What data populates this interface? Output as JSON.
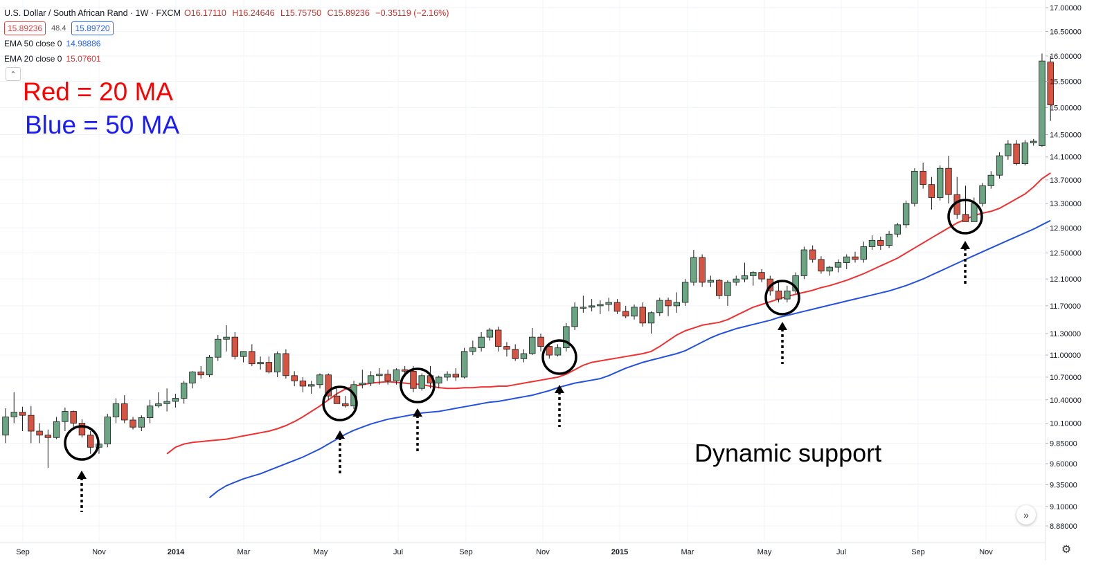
{
  "header": {
    "symbol_line": "U.S. Dollar / South African Rand · 1W · FXCM",
    "open": "O16.17110",
    "high": "H16.24646",
    "low": "L15.75750",
    "close": "C15.89236",
    "change": "−0.35119 (−2.16%)",
    "sell_price": "15.89236",
    "spread": "48.4",
    "buy_price": "15.89720",
    "collapse_icon": "chevron-up-icon"
  },
  "indicators": [
    {
      "label": "EMA 50 close 0",
      "value": "14.98886",
      "color": "#2962ff"
    },
    {
      "label": "EMA 20 close 0",
      "value": "15.07601",
      "color": "#e53935"
    }
  ],
  "annotations": {
    "red_note": "Red = 20 MA",
    "blue_note": "Blue = 50 MA",
    "support_note": "Dynamic support"
  },
  "controls": {
    "scroll_icon": "double-chevron-right-icon",
    "scroll_glyph": "»",
    "settings_icon": "gear-icon",
    "settings_glyph": "⚙"
  },
  "colors": {
    "up": "#6ba583",
    "down": "#d75442",
    "ema20": "#f23030",
    "ema50": "#2450e0",
    "grid": "#f0f3fa",
    "axis_text": "#131722"
  },
  "chart_data": {
    "type": "candlestick",
    "y_axis_ticks": [
      "17.00000",
      "16.50000",
      "16.00000",
      "15.50000",
      "15.00000",
      "14.50000",
      "14.10000",
      "13.70000",
      "13.30000",
      "12.90000",
      "12.50000",
      "12.10000",
      "11.70000",
      "11.30000",
      "11.00000",
      "10.70000",
      "10.40000",
      "10.10000",
      "9.85000",
      "9.60000",
      "9.35000",
      "9.10000",
      "8.88000"
    ],
    "x_axis_labels": [
      "Sep",
      "Nov",
      "2014",
      "Mar",
      "May",
      "Jul",
      "Sep",
      "Nov",
      "2015",
      "Mar",
      "May",
      "Jul",
      "Sep",
      "Nov"
    ],
    "candles": [
      [
        9.95,
        10.29,
        9.85,
        10.18
      ],
      [
        10.18,
        10.5,
        10.1,
        10.24
      ],
      [
        10.24,
        10.31,
        10.0,
        10.2
      ],
      [
        10.2,
        10.32,
        9.85,
        10.0
      ],
      [
        10.0,
        10.1,
        9.85,
        9.95
      ],
      [
        9.95,
        10.02,
        9.55,
        9.92
      ],
      [
        9.92,
        10.18,
        9.9,
        10.12
      ],
      [
        10.12,
        10.3,
        10.0,
        10.25
      ],
      [
        10.25,
        10.26,
        10.05,
        10.1
      ],
      [
        10.1,
        10.15,
        9.92,
        9.95
      ],
      [
        9.95,
        10.0,
        9.72,
        9.8
      ],
      [
        9.8,
        9.88,
        9.72,
        9.84
      ],
      [
        9.84,
        10.22,
        9.8,
        10.18
      ],
      [
        10.18,
        10.42,
        10.1,
        10.35
      ],
      [
        10.35,
        10.46,
        10.1,
        10.14
      ],
      [
        10.14,
        10.18,
        10.02,
        10.05
      ],
      [
        10.05,
        10.2,
        10.0,
        10.17
      ],
      [
        10.17,
        10.4,
        10.1,
        10.32
      ],
      [
        10.32,
        10.5,
        10.3,
        10.35
      ],
      [
        10.35,
        10.55,
        10.25,
        10.38
      ],
      [
        10.38,
        10.48,
        10.3,
        10.42
      ],
      [
        10.42,
        10.65,
        10.35,
        10.62
      ],
      [
        10.62,
        10.78,
        10.55,
        10.77
      ],
      [
        10.77,
        10.85,
        10.68,
        10.73
      ],
      [
        10.73,
        11.0,
        10.7,
        10.97
      ],
      [
        10.97,
        11.28,
        10.92,
        11.22
      ],
      [
        11.22,
        11.42,
        11.05,
        11.25
      ],
      [
        11.25,
        11.32,
        10.94,
        10.98
      ],
      [
        10.98,
        11.05,
        10.9,
        11.05
      ],
      [
        11.05,
        11.15,
        10.85,
        10.88
      ],
      [
        10.88,
        10.98,
        10.8,
        10.9
      ],
      [
        10.9,
        10.98,
        10.75,
        10.77
      ],
      [
        10.77,
        11.05,
        10.7,
        11.02
      ],
      [
        11.02,
        11.08,
        10.68,
        10.72
      ],
      [
        10.72,
        10.78,
        10.58,
        10.65
      ],
      [
        10.65,
        10.7,
        10.5,
        10.58
      ],
      [
        10.58,
        10.65,
        10.48,
        10.6
      ],
      [
        10.6,
        10.75,
        10.55,
        10.73
      ],
      [
        10.73,
        10.75,
        10.4,
        10.45
      ],
      [
        10.45,
        10.55,
        10.38,
        10.35
      ],
      [
        10.35,
        10.45,
        10.3,
        10.32
      ],
      [
        10.32,
        10.65,
        10.28,
        10.6
      ],
      [
        10.6,
        10.8,
        10.55,
        10.62
      ],
      [
        10.62,
        10.78,
        10.58,
        10.72
      ],
      [
        10.72,
        10.82,
        10.6,
        10.74
      ],
      [
        10.74,
        10.8,
        10.6,
        10.65
      ],
      [
        10.65,
        10.82,
        10.6,
        10.8
      ],
      [
        10.8,
        10.85,
        10.7,
        10.78
      ],
      [
        10.78,
        10.85,
        10.5,
        10.55
      ],
      [
        10.55,
        10.75,
        10.52,
        10.72
      ],
      [
        10.72,
        10.85,
        10.55,
        10.62
      ],
      [
        10.62,
        10.72,
        10.55,
        10.7
      ],
      [
        10.7,
        10.78,
        10.65,
        10.74
      ],
      [
        10.74,
        10.82,
        10.65,
        10.7
      ],
      [
        10.7,
        11.1,
        10.68,
        11.05
      ],
      [
        11.05,
        11.2,
        11.0,
        11.1
      ],
      [
        11.1,
        11.32,
        11.05,
        11.25
      ],
      [
        11.25,
        11.38,
        11.2,
        11.35
      ],
      [
        11.35,
        11.4,
        11.05,
        11.12
      ],
      [
        11.12,
        11.18,
        10.98,
        11.08
      ],
      [
        11.08,
        11.15,
        10.92,
        10.95
      ],
      [
        10.95,
        11.08,
        10.9,
        11.02
      ],
      [
        11.02,
        11.38,
        11.0,
        11.25
      ],
      [
        11.25,
        11.3,
        11.05,
        11.12
      ],
      [
        11.12,
        11.15,
        10.95,
        11.0
      ],
      [
        11.0,
        11.15,
        10.98,
        11.1
      ],
      [
        11.1,
        11.45,
        11.05,
        11.4
      ],
      [
        11.4,
        11.75,
        11.35,
        11.68
      ],
      [
        11.68,
        11.85,
        11.6,
        11.68
      ],
      [
        11.68,
        11.8,
        11.62,
        11.7
      ],
      [
        11.7,
        11.78,
        11.58,
        11.72
      ],
      [
        11.72,
        11.82,
        11.62,
        11.75
      ],
      [
        11.75,
        11.8,
        11.58,
        11.62
      ],
      [
        11.62,
        11.7,
        11.52,
        11.55
      ],
      [
        11.55,
        11.72,
        11.5,
        11.68
      ],
      [
        11.68,
        11.75,
        11.4,
        11.45
      ],
      [
        11.45,
        11.62,
        11.3,
        11.6
      ],
      [
        11.6,
        11.82,
        11.55,
        11.78
      ],
      [
        11.78,
        11.82,
        11.55,
        11.7
      ],
      [
        11.7,
        11.9,
        11.6,
        11.75
      ],
      [
        11.75,
        12.1,
        11.7,
        12.05
      ],
      [
        12.05,
        12.55,
        12.0,
        12.43
      ],
      [
        12.43,
        12.48,
        11.98,
        12.05
      ],
      [
        12.05,
        12.15,
        11.98,
        12.08
      ],
      [
        12.08,
        12.1,
        11.8,
        11.85
      ],
      [
        11.85,
        12.08,
        11.7,
        12.05
      ],
      [
        12.05,
        12.15,
        12.0,
        12.1
      ],
      [
        12.1,
        12.35,
        12.05,
        12.15
      ],
      [
        12.15,
        12.22,
        12.0,
        12.2
      ],
      [
        12.2,
        12.25,
        12.05,
        12.1
      ],
      [
        12.1,
        12.15,
        11.85,
        11.92
      ],
      [
        11.92,
        12.05,
        11.75,
        11.8
      ],
      [
        11.8,
        12.0,
        11.75,
        11.92
      ],
      [
        11.92,
        12.2,
        11.88,
        12.15
      ],
      [
        12.15,
        12.6,
        12.1,
        12.55
      ],
      [
        12.55,
        12.62,
        12.35,
        12.4
      ],
      [
        12.4,
        12.45,
        12.18,
        12.22
      ],
      [
        12.22,
        12.3,
        12.15,
        12.28
      ],
      [
        12.28,
        12.4,
        12.2,
        12.35
      ],
      [
        12.35,
        12.48,
        12.25,
        12.44
      ],
      [
        12.44,
        12.52,
        12.35,
        12.4
      ],
      [
        12.4,
        12.68,
        12.35,
        12.6
      ],
      [
        12.6,
        12.78,
        12.55,
        12.7
      ],
      [
        12.7,
        12.76,
        12.55,
        12.62
      ],
      [
        12.62,
        12.85,
        12.58,
        12.8
      ],
      [
        12.8,
        12.98,
        12.75,
        12.95
      ],
      [
        12.95,
        13.35,
        12.9,
        13.3
      ],
      [
        13.3,
        13.9,
        13.25,
        13.85
      ],
      [
        13.85,
        14.0,
        13.55,
        13.62
      ],
      [
        13.62,
        13.75,
        13.2,
        13.4
      ],
      [
        13.4,
        13.95,
        13.35,
        13.9
      ],
      [
        13.9,
        14.12,
        13.3,
        13.45
      ],
      [
        13.45,
        13.75,
        13.05,
        13.12
      ],
      [
        13.12,
        13.6,
        13.0,
        13.0
      ],
      [
        13.0,
        13.4,
        13.05,
        13.3
      ],
      [
        13.3,
        13.65,
        13.25,
        13.6
      ],
      [
        13.6,
        13.85,
        13.55,
        13.78
      ],
      [
        13.78,
        14.18,
        13.72,
        14.12
      ],
      [
        14.12,
        14.4,
        14.05,
        14.33
      ],
      [
        14.33,
        14.4,
        13.95,
        13.98
      ],
      [
        13.98,
        14.4,
        13.95,
        14.35
      ],
      [
        14.35,
        14.42,
        14.3,
        14.38
      ],
      [
        14.3,
        16.05,
        14.28,
        15.9
      ],
      [
        15.88,
        16.0,
        14.75,
        15.05
      ]
    ],
    "series": [
      {
        "name": "EMA 20 close 0",
        "color": "red",
        "values": [
          9.72,
          9.8,
          9.84,
          9.86,
          9.87,
          9.88,
          9.89,
          9.9,
          9.92,
          9.94,
          9.96,
          9.98,
          10.0,
          10.03,
          10.07,
          10.12,
          10.18,
          10.25,
          10.32,
          10.4,
          10.48,
          10.54,
          10.58,
          10.6,
          10.62,
          10.63,
          10.64,
          10.63,
          10.62,
          10.61,
          10.6,
          10.58,
          10.56,
          10.55,
          10.55,
          10.56,
          10.56,
          10.57,
          10.57,
          10.58,
          10.58,
          10.6,
          10.62,
          10.64,
          10.66,
          10.68,
          10.7,
          10.74,
          10.8,
          10.86,
          10.9,
          10.92,
          10.94,
          10.96,
          10.98,
          11.0,
          11.02,
          11.05,
          11.12,
          11.2,
          11.28,
          11.34,
          11.38,
          11.42,
          11.44,
          11.46,
          11.5,
          11.56,
          11.62,
          11.68,
          11.72,
          11.76,
          11.8,
          11.84,
          11.87,
          11.9,
          11.93,
          11.97,
          12.0,
          12.04,
          12.08,
          12.13,
          12.18,
          12.24,
          12.3,
          12.36,
          12.42,
          12.5,
          12.58,
          12.66,
          12.74,
          12.82,
          12.9,
          12.98,
          13.04,
          13.1,
          13.14,
          13.17,
          13.22,
          13.3,
          13.38,
          13.46,
          13.58,
          13.72,
          13.82
        ]
      },
      {
        "name": "EMA 50 close 0",
        "color": "blue",
        "values": [
          9.2,
          9.28,
          9.34,
          9.38,
          9.42,
          9.45,
          9.48,
          9.52,
          9.56,
          9.6,
          9.64,
          9.68,
          9.73,
          9.78,
          9.84,
          9.9,
          9.96,
          10.01,
          10.05,
          10.09,
          10.12,
          10.15,
          10.17,
          10.19,
          10.21,
          10.23,
          10.24,
          10.25,
          10.27,
          10.29,
          10.31,
          10.33,
          10.35,
          10.37,
          10.38,
          10.4,
          10.42,
          10.44,
          10.46,
          10.49,
          10.52,
          10.56,
          10.59,
          10.62,
          10.64,
          10.66,
          10.68,
          10.72,
          10.77,
          10.82,
          10.86,
          10.9,
          10.93,
          10.96,
          10.99,
          11.02,
          11.06,
          11.12,
          11.18,
          11.24,
          11.29,
          11.33,
          11.37,
          11.4,
          11.43,
          11.46,
          11.49,
          11.53,
          11.56,
          11.59,
          11.62,
          11.65,
          11.68,
          11.71,
          11.74,
          11.77,
          11.8,
          11.83,
          11.86,
          11.89,
          11.92,
          11.96,
          12.0,
          12.05,
          12.1,
          12.16,
          12.22,
          12.28,
          12.34,
          12.4,
          12.46,
          12.52,
          12.58,
          12.64,
          12.7,
          12.76,
          12.82,
          12.88,
          12.95,
          13.02
        ]
      }
    ]
  }
}
